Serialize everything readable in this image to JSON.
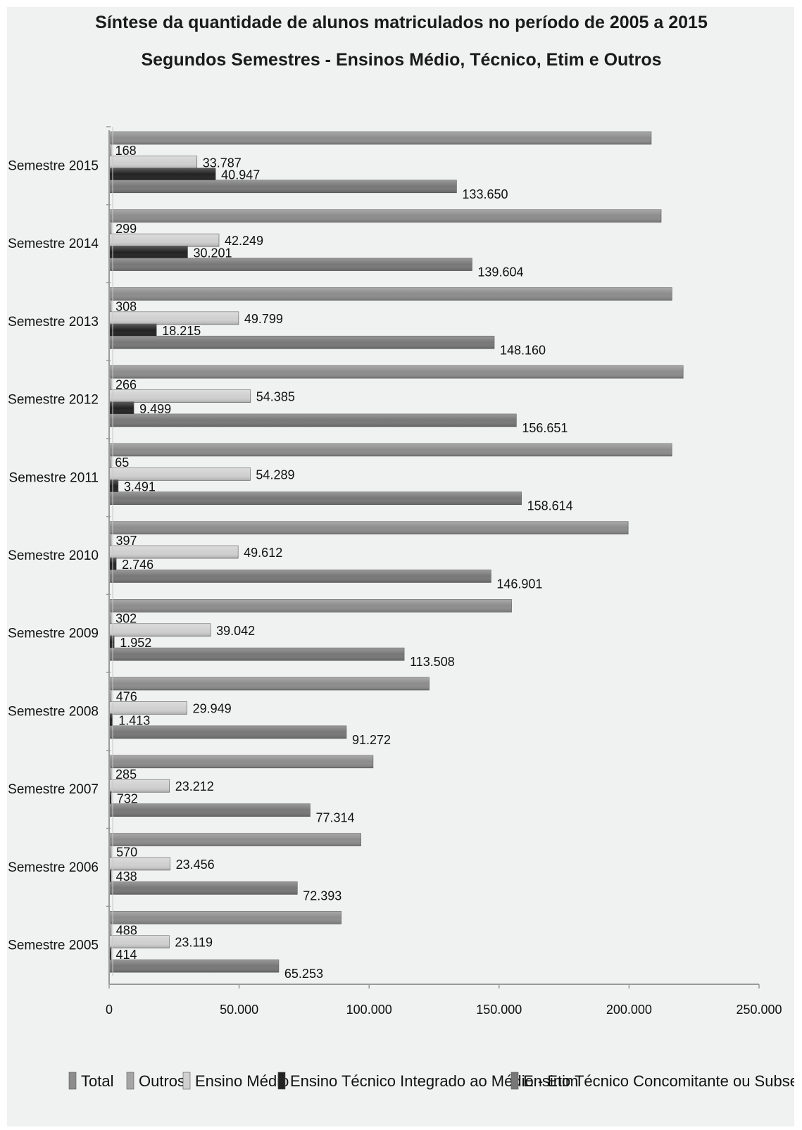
{
  "chart_data": {
    "type": "bar",
    "orientation": "horizontal",
    "title": "Síntese da quantidade de alunos matriculados no período de 2005 a 2015",
    "subtitle": "Segundos Semestres - Ensinos Médio, Técnico, Etim e Outros",
    "categories": [
      "2.º Semestre 2015",
      "2.º Semestre 2014",
      "2.º Semestre 2013",
      "2.º Semestre 2012",
      "2.º Semestre 2011",
      "2.º Semestre 2010",
      "2.º Semestre 2009",
      "2.º Semestre 2008",
      "2.º Semestre 2007",
      "2.º Semestre 2006",
      "2.º Semestre 2005"
    ],
    "series": [
      {
        "name": "Total",
        "color": "#8c8c8c",
        "values": [
          208552,
          212353,
          216482,
          220801,
          216459,
          199656,
          154804,
          123110,
          101543,
          96857,
          89274
        ],
        "labels": [
          "",
          "",
          "",
          "",
          "",
          "",
          "",
          "",
          "",
          "",
          ""
        ]
      },
      {
        "name": "Outros",
        "color": "#a5a5a5",
        "values": [
          168,
          299,
          308,
          266,
          65,
          397,
          302,
          476,
          285,
          570,
          488
        ],
        "labels": [
          "168",
          "299",
          "308",
          "266",
          "65",
          "397",
          "302",
          "476",
          "285",
          "570",
          "488"
        ]
      },
      {
        "name": "Ensino Médio",
        "color": "#d0d0d0",
        "values": [
          33787,
          42249,
          49799,
          54385,
          54289,
          49612,
          39042,
          29949,
          23212,
          23456,
          23119
        ],
        "labels": [
          "33.787",
          "42.249",
          "49.799",
          "54.385",
          "54.289",
          "49.612",
          "39.042",
          "29.949",
          "23.212",
          "23.456",
          "23.119"
        ]
      },
      {
        "name": "Ensino Técnico Integrado ao Médio - Etim",
        "color": "#222222",
        "values": [
          40947,
          30201,
          18215,
          9499,
          3491,
          2746,
          1952,
          1413,
          732,
          438,
          414
        ],
        "labels": [
          "40.947",
          "30.201",
          "18.215",
          "9.499",
          "3.491",
          "2.746",
          "1.952",
          "1.413",
          "732",
          "438",
          "414"
        ]
      },
      {
        "name": "Ensino Técnico Concomitante ou Subsequente",
        "color": "#777777",
        "values": [
          133650,
          139604,
          148160,
          156651,
          158614,
          146901,
          113508,
          91272,
          77314,
          72393,
          65253
        ],
        "labels": [
          "133.650",
          "139.604",
          "148.160",
          "156.651",
          "158.614",
          "146.901",
          "113.508",
          "91.272",
          "77.314",
          "72.393",
          "65.253"
        ]
      }
    ],
    "xlim": [
      0,
      250000
    ],
    "ticks": [
      "0",
      "50.000",
      "100.000",
      "150.000",
      "200.000",
      "250.000"
    ],
    "grid": false,
    "legend_position": "bottom"
  }
}
